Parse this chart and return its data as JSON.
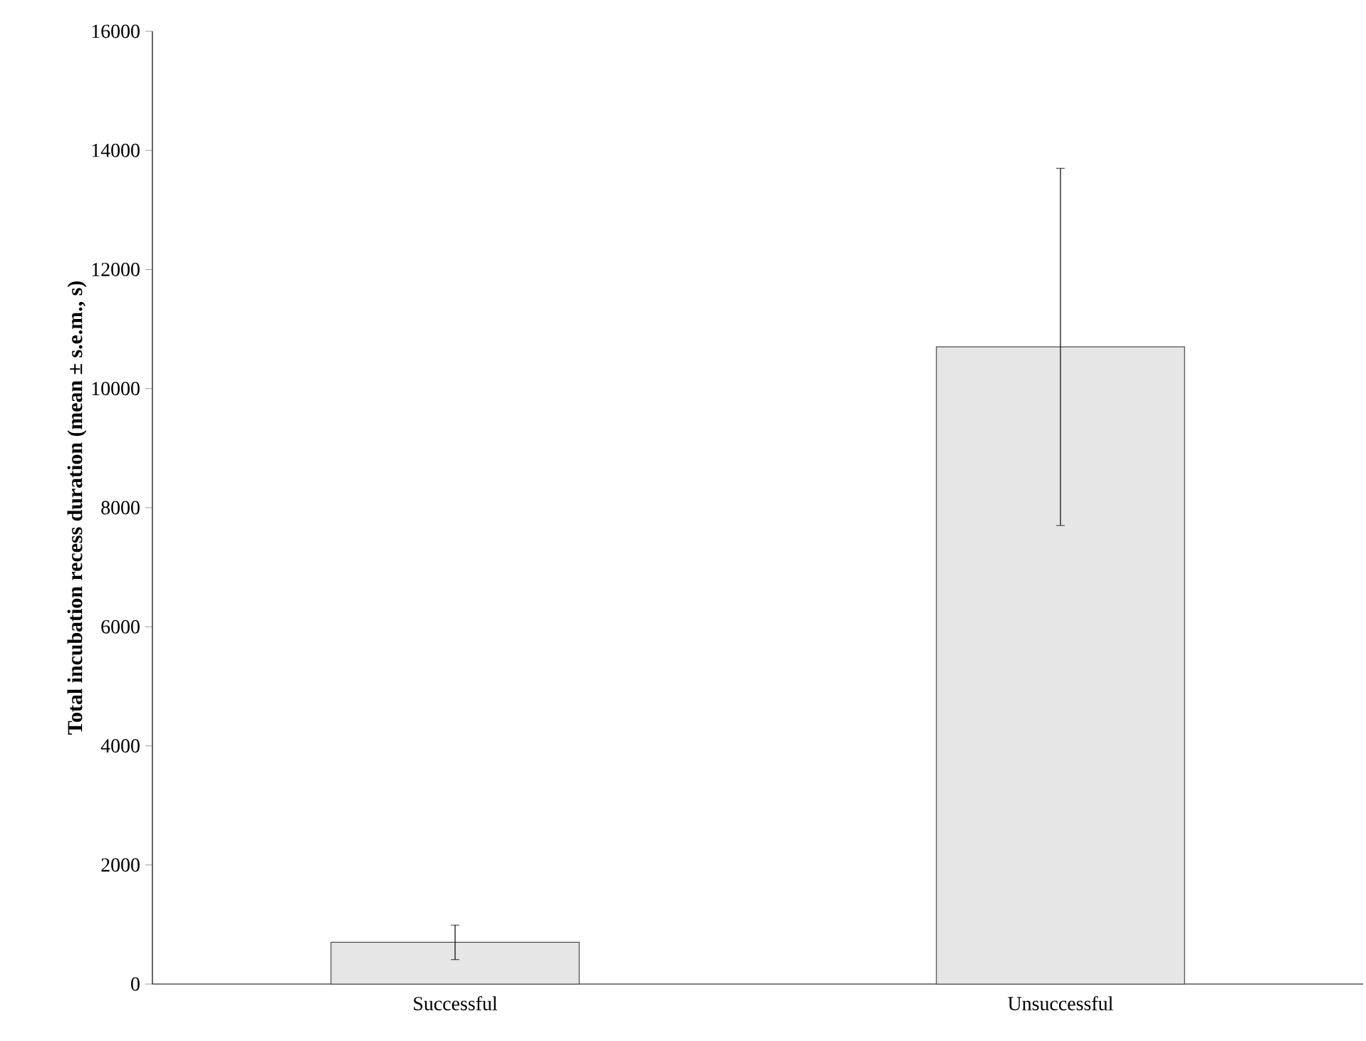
{
  "chart_data": {
    "type": "bar",
    "ylabel": "Total incubation recess duration (mean ± s.e.m., s)",
    "categories": [
      "Successful",
      "Unsuccessful"
    ],
    "values": [
      700,
      10700
    ],
    "errors": [
      290,
      3000
    ],
    "color": "#e6e6e6",
    "ylim": [
      0,
      16000
    ],
    "yticks": [
      0,
      2000,
      4000,
      6000,
      8000,
      10000,
      12000,
      14000,
      16000
    ]
  }
}
